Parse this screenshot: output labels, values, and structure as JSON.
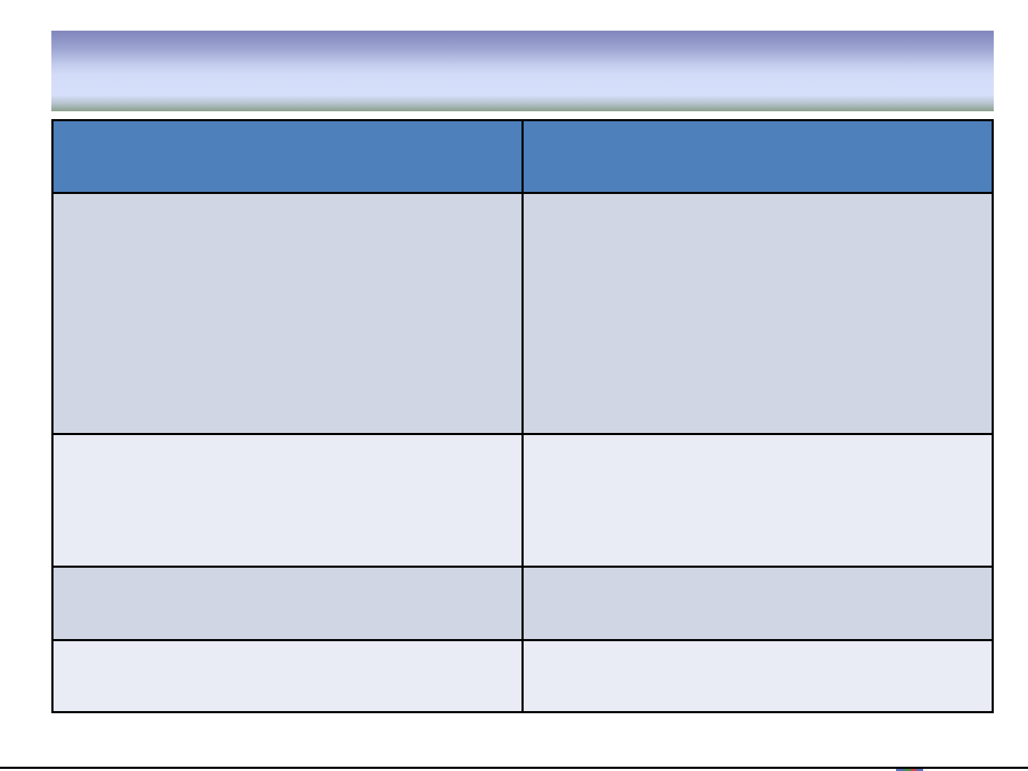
{
  "page": {
    "background_color": "#ffffff",
    "bottom_rule_color": "#000000"
  },
  "banner": {
    "gradient_top_color": "#8086bb",
    "gradient_middle_color": "#d5defa",
    "gradient_bottom_color": "#8ca08e"
  },
  "table": {
    "border_color": "#000000",
    "header_bg_color": "#4e80bc",
    "band_dark_color": "#d1d6e5",
    "band_light_color": "#e9ecf5",
    "columns": 2,
    "header": {
      "cells": [
        "",
        ""
      ]
    },
    "rows": [
      {
        "cells": [
          "",
          ""
        ]
      },
      {
        "cells": [
          "",
          ""
        ]
      },
      {
        "cells": [
          "",
          ""
        ]
      },
      {
        "cells": [
          "",
          ""
        ]
      }
    ]
  }
}
